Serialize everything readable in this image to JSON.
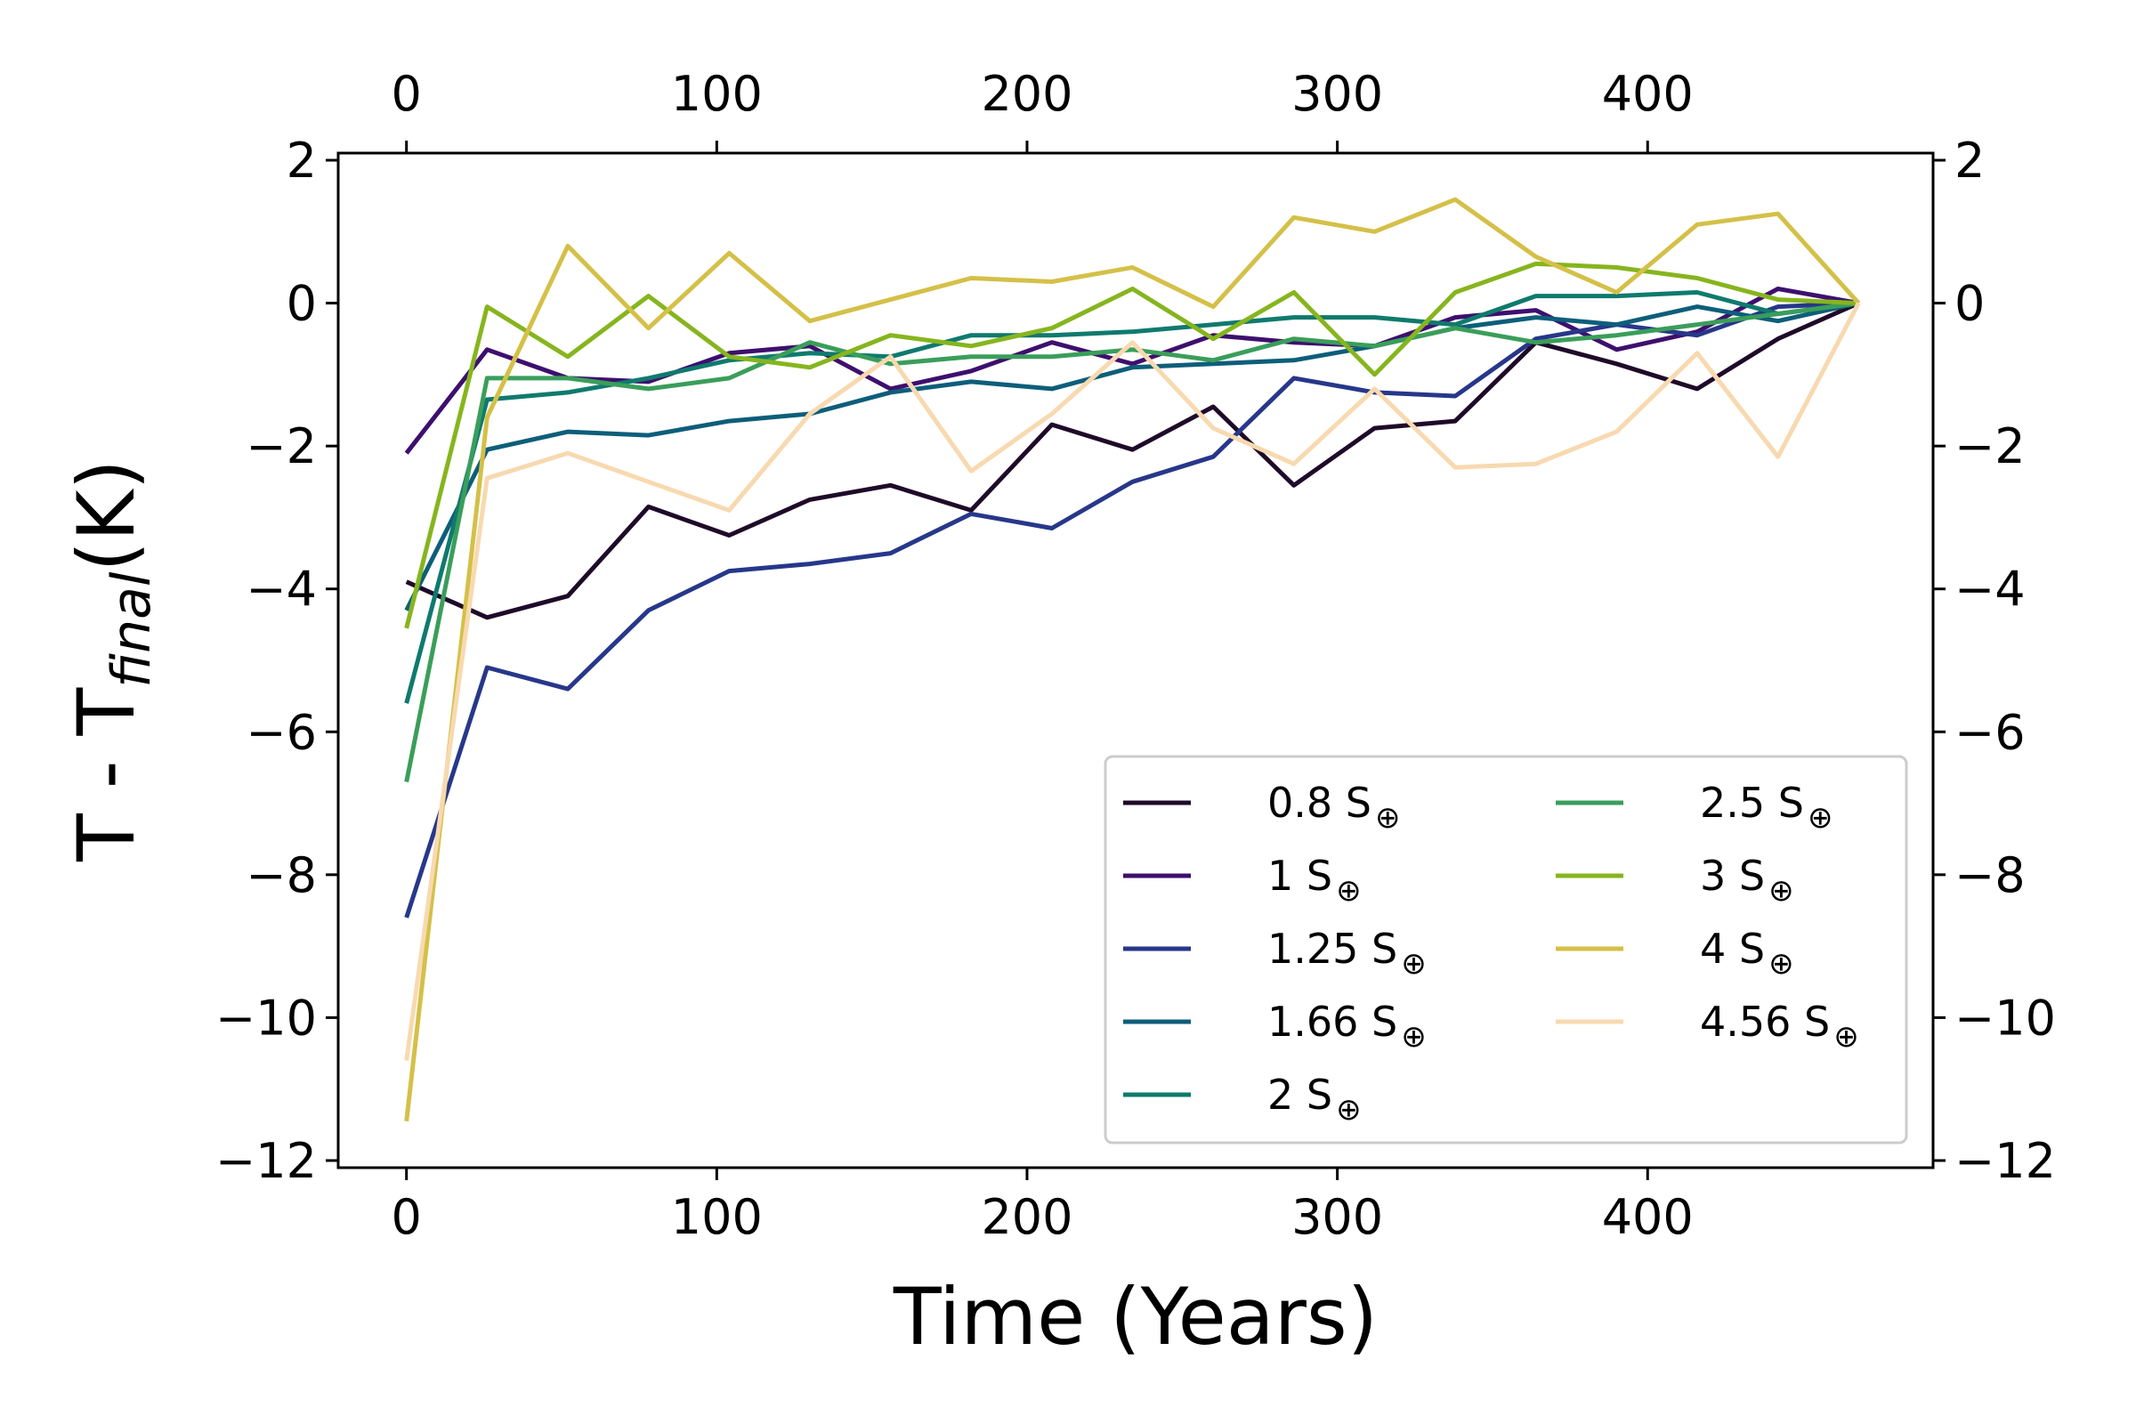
{
  "chart_data": {
    "type": "line",
    "title": "",
    "xlabel": "Time (Years)",
    "ylabel": "T - T",
    "ylabel_sub": "final",
    "ylabel_unit": "(K)",
    "xlim": [
      -22,
      492
    ],
    "ylim": [
      -12.1,
      2.1
    ],
    "x_ticks": [
      0,
      100,
      200,
      300,
      400
    ],
    "y_ticks": [
      2,
      0,
      -2,
      -4,
      -6,
      -8,
      -10,
      -12
    ],
    "x_tick_labels": [
      "0",
      "100",
      "200",
      "300",
      "400"
    ],
    "y_tick_labels": [
      "2",
      "0",
      "−2",
      "−4",
      "−6",
      "−8",
      "−10",
      "−12"
    ],
    "top_axis": true,
    "right_axis": true,
    "grid": false,
    "legend_position": "lower-right",
    "legend_columns": 2,
    "legend_unit": "S",
    "legend_subscript": "⊕",
    "x": [
      0,
      26,
      52,
      78,
      104,
      130,
      156,
      182,
      208,
      234,
      260,
      286,
      312,
      338,
      364,
      390,
      416,
      442,
      468
    ],
    "series": [
      {
        "name": "0.8",
        "color": "#1f0a29",
        "values": [
          -3.9,
          -4.4,
          -4.1,
          -2.85,
          -3.25,
          -2.75,
          -2.55,
          -2.9,
          -1.7,
          -2.05,
          -1.45,
          -2.55,
          -1.75,
          -1.65,
          -0.55,
          -0.85,
          -1.2,
          -0.5,
          0
        ]
      },
      {
        "name": "1",
        "color": "#3e0f6e",
        "values": [
          -2.1,
          -0.65,
          -1.05,
          -1.1,
          -0.7,
          -0.6,
          -1.2,
          -0.95,
          -0.55,
          -0.85,
          -0.45,
          -0.55,
          -0.6,
          -0.2,
          -0.1,
          -0.65,
          -0.4,
          0.2,
          0
        ]
      },
      {
        "name": "1.25",
        "color": "#27378a",
        "values": [
          -8.6,
          -5.1,
          -5.4,
          -4.3,
          -3.75,
          -3.65,
          -3.5,
          -2.95,
          -3.15,
          -2.5,
          -2.15,
          -1.05,
          -1.25,
          -1.3,
          -0.5,
          -0.3,
          -0.45,
          -0.05,
          0
        ]
      },
      {
        "name": "1.66",
        "color": "#0d5e7a",
        "values": [
          -4.3,
          -2.05,
          -1.8,
          -1.85,
          -1.65,
          -1.55,
          -1.25,
          -1.1,
          -1.2,
          -0.9,
          -0.85,
          -0.8,
          -0.6,
          -0.35,
          -0.2,
          -0.3,
          -0.05,
          -0.25,
          0
        ]
      },
      {
        "name": "2",
        "color": "#0f7a6e",
        "values": [
          -5.6,
          -1.35,
          -1.25,
          -1.05,
          -0.8,
          -0.7,
          -0.75,
          -0.45,
          -0.45,
          -0.4,
          -0.3,
          -0.2,
          -0.2,
          -0.3,
          0.1,
          0.1,
          0.15,
          -0.15,
          0
        ]
      },
      {
        "name": "2.5",
        "color": "#3a9e5a",
        "values": [
          -6.7,
          -1.05,
          -1.05,
          -1.2,
          -1.05,
          -0.55,
          -0.85,
          -0.75,
          -0.75,
          -0.65,
          -0.8,
          -0.5,
          -0.6,
          -0.35,
          -0.55,
          -0.45,
          -0.3,
          -0.15,
          0
        ]
      },
      {
        "name": "3",
        "color": "#86b51e",
        "values": [
          -4.55,
          -0.05,
          -0.75,
          0.1,
          -0.75,
          -0.9,
          -0.45,
          -0.6,
          -0.35,
          0.2,
          -0.5,
          0.15,
          -1.0,
          0.15,
          0.55,
          0.5,
          0.35,
          0.05,
          0
        ]
      },
      {
        "name": "4",
        "color": "#d4c048",
        "values": [
          -11.45,
          -1.6,
          0.8,
          -0.35,
          0.7,
          -0.25,
          0.05,
          0.35,
          0.3,
          0.5,
          -0.05,
          1.2,
          1.0,
          1.45,
          0.65,
          0.15,
          1.1,
          1.25,
          0
        ]
      },
      {
        "name": "4.56",
        "color": "#f8d9b0",
        "values": [
          -10.6,
          -2.45,
          -2.1,
          -2.5,
          -2.9,
          -1.55,
          -0.75,
          -2.35,
          -1.55,
          -0.55,
          -1.75,
          -2.25,
          -1.2,
          -2.3,
          -2.25,
          -1.8,
          -0.7,
          -2.15,
          0
        ]
      }
    ]
  }
}
